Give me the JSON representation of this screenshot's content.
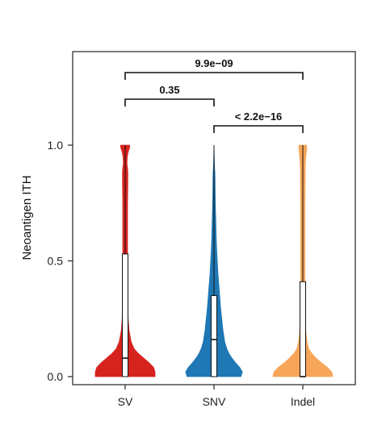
{
  "chart_data": {
    "type": "violin",
    "ylabel": "Neoantigen ITH",
    "ylim": [
      0,
      1.35
    ],
    "yticks": [
      {
        "value": 0.0,
        "label": "0.0"
      },
      {
        "value": 0.5,
        "label": "0.5"
      },
      {
        "value": 1.0,
        "label": "1.0"
      }
    ],
    "categories": [
      "SV",
      "SNV",
      "Indel"
    ],
    "series": [
      {
        "category": "SV",
        "color": "#D7231E",
        "box": {
          "q1": 0.0,
          "median": 0.08,
          "q3": 0.53,
          "whisker_low": 0.0,
          "whisker_high": 1.0
        },
        "density": [
          [
            0.0,
            1.0
          ],
          [
            0.02,
            1.0
          ],
          [
            0.04,
            0.95
          ],
          [
            0.06,
            0.8
          ],
          [
            0.08,
            0.62
          ],
          [
            0.1,
            0.44
          ],
          [
            0.12,
            0.3
          ],
          [
            0.15,
            0.2
          ],
          [
            0.2,
            0.13
          ],
          [
            0.25,
            0.1
          ],
          [
            0.3,
            0.09
          ],
          [
            0.35,
            0.085
          ],
          [
            0.4,
            0.08
          ],
          [
            0.45,
            0.08
          ],
          [
            0.5,
            0.08
          ],
          [
            0.55,
            0.08
          ],
          [
            0.6,
            0.08
          ],
          [
            0.65,
            0.08
          ],
          [
            0.7,
            0.08
          ],
          [
            0.75,
            0.08
          ],
          [
            0.8,
            0.085
          ],
          [
            0.85,
            0.09
          ],
          [
            0.88,
            0.09
          ],
          [
            0.9,
            0.08
          ],
          [
            0.92,
            0.06
          ],
          [
            0.95,
            0.07
          ],
          [
            0.97,
            0.1
          ],
          [
            0.99,
            0.15
          ],
          [
            1.0,
            0.15
          ]
        ]
      },
      {
        "category": "SNV",
        "color": "#1F77B4",
        "box": {
          "q1": 0.0,
          "median": 0.16,
          "q3": 0.35,
          "whisker_low": 0.0,
          "whisker_high": 1.0
        },
        "density": [
          [
            0.0,
            0.9
          ],
          [
            0.02,
            0.95
          ],
          [
            0.04,
            0.86
          ],
          [
            0.06,
            0.72
          ],
          [
            0.08,
            0.6
          ],
          [
            0.1,
            0.5
          ],
          [
            0.12,
            0.43
          ],
          [
            0.15,
            0.36
          ],
          [
            0.2,
            0.3
          ],
          [
            0.25,
            0.26
          ],
          [
            0.3,
            0.22
          ],
          [
            0.35,
            0.19
          ],
          [
            0.4,
            0.16
          ],
          [
            0.45,
            0.13
          ],
          [
            0.5,
            0.11
          ],
          [
            0.55,
            0.09
          ],
          [
            0.6,
            0.075
          ],
          [
            0.65,
            0.065
          ],
          [
            0.7,
            0.055
          ],
          [
            0.75,
            0.045
          ],
          [
            0.8,
            0.04
          ],
          [
            0.85,
            0.035
          ],
          [
            0.88,
            0.03
          ],
          [
            0.9,
            0.02
          ],
          [
            0.93,
            0.012
          ],
          [
            0.96,
            0.006
          ],
          [
            1.0,
            0.0
          ]
        ]
      },
      {
        "category": "Indel",
        "color": "#F7A559",
        "box": {
          "q1": 0.0,
          "median": 0.0,
          "q3": 0.41,
          "whisker_low": 0.0,
          "whisker_high": 1.0
        },
        "density": [
          [
            0.0,
            1.0
          ],
          [
            0.02,
            0.97
          ],
          [
            0.04,
            0.82
          ],
          [
            0.06,
            0.62
          ],
          [
            0.08,
            0.44
          ],
          [
            0.1,
            0.3
          ],
          [
            0.12,
            0.2
          ],
          [
            0.15,
            0.14
          ],
          [
            0.2,
            0.1
          ],
          [
            0.25,
            0.085
          ],
          [
            0.3,
            0.075
          ],
          [
            0.35,
            0.07
          ],
          [
            0.4,
            0.07
          ],
          [
            0.45,
            0.07
          ],
          [
            0.5,
            0.07
          ],
          [
            0.55,
            0.07
          ],
          [
            0.6,
            0.07
          ],
          [
            0.65,
            0.07
          ],
          [
            0.7,
            0.07
          ],
          [
            0.75,
            0.07
          ],
          [
            0.8,
            0.075
          ],
          [
            0.85,
            0.08
          ],
          [
            0.9,
            0.08
          ],
          [
            0.93,
            0.09
          ],
          [
            0.96,
            0.11
          ],
          [
            0.98,
            0.13
          ],
          [
            1.0,
            0.13
          ]
        ]
      }
    ],
    "comparisons": [
      {
        "from": "SV",
        "to": "SNV",
        "label": "0.35",
        "level": 1
      },
      {
        "from": "SNV",
        "to": "Indel",
        "label": "< 2.2e−16",
        "level": 0
      },
      {
        "from": "SV",
        "to": "Indel",
        "label": "9.9e−09",
        "level": 2
      }
    ]
  }
}
